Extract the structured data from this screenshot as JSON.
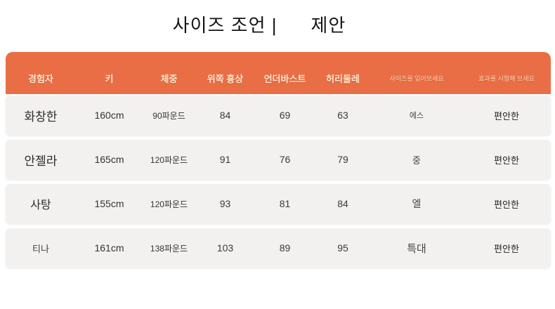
{
  "title": {
    "part1": "사이즈 조언 |",
    "part2": "제안"
  },
  "colors": {
    "header_bg": "#E96E46",
    "header_text": "#FDE7CE",
    "row_bg": "#F2F1EF",
    "body_text": "#2B2B2B"
  },
  "table": {
    "columns": [
      {
        "key": "name",
        "label": "경험자",
        "small": false
      },
      {
        "key": "height",
        "label": "키",
        "small": false
      },
      {
        "key": "weight",
        "label": "체중",
        "small": false
      },
      {
        "key": "upper_bust",
        "label": "위쪽 흉상",
        "small": false
      },
      {
        "key": "underbust",
        "label": "언더바스트",
        "small": false
      },
      {
        "key": "waist",
        "label": "허리둘레",
        "small": false
      },
      {
        "key": "size",
        "label": "사이즈를 입어보세요",
        "small": true
      },
      {
        "key": "effect",
        "label": "효과를 시험해 보세요",
        "small": true
      }
    ],
    "rows": [
      {
        "name": "화창한",
        "height": "160cm",
        "weight": "90파운드",
        "upper_bust": "84",
        "underbust": "69",
        "waist": "63",
        "size": "에스",
        "effect": "편안한"
      },
      {
        "name": "안젤라",
        "height": "165cm",
        "weight": "120파운드",
        "upper_bust": "91",
        "underbust": "76",
        "waist": "79",
        "size": "중",
        "effect": "편안한"
      },
      {
        "name": "사탕",
        "height": "155cm",
        "weight": "120파운드",
        "upper_bust": "93",
        "underbust": "81",
        "waist": "84",
        "size": "엘",
        "effect": "편안한"
      },
      {
        "name": "티나",
        "height": "161cm",
        "weight": "138파운드",
        "upper_bust": "103",
        "underbust": "89",
        "waist": "95",
        "size": "특대",
        "effect": "편안한"
      }
    ]
  }
}
